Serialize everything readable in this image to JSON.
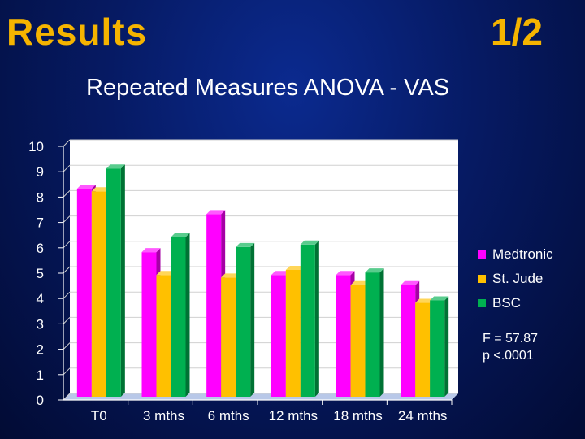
{
  "slide": {
    "title": "Results",
    "page": "1/2",
    "subtitle": "Repeated Measures ANOVA - VAS"
  },
  "stats": {
    "f_value": "F = 57.87",
    "p_value": "p <.0001"
  },
  "colors": {
    "title": "#f5b400",
    "text": "#ffffff",
    "Medtronic": "#ff00ff",
    "St. Jude": "#ffc000",
    "BSC": "#00b050"
  },
  "chart_data": {
    "type": "bar",
    "title": "Repeated Measures ANOVA - VAS",
    "categories": [
      "T0",
      "3 mths",
      "6 mths",
      "12 mths",
      "18 mths",
      "24 mths"
    ],
    "series": [
      {
        "name": "Medtronic",
        "values": [
          8.2,
          5.7,
          7.2,
          4.8,
          4.8,
          4.4
        ]
      },
      {
        "name": "St. Jude",
        "values": [
          8.1,
          4.8,
          4.7,
          5.0,
          4.4,
          3.7
        ]
      },
      {
        "name": "BSC",
        "values": [
          9.0,
          6.3,
          5.9,
          6.0,
          4.9,
          3.8
        ]
      }
    ],
    "ylim": [
      0,
      10
    ],
    "yticks": [
      "0",
      "1",
      "2",
      "3",
      "4",
      "5",
      "6",
      "7",
      "8",
      "9",
      "10"
    ],
    "xlabel": "",
    "ylabel": "",
    "legend": "right"
  }
}
